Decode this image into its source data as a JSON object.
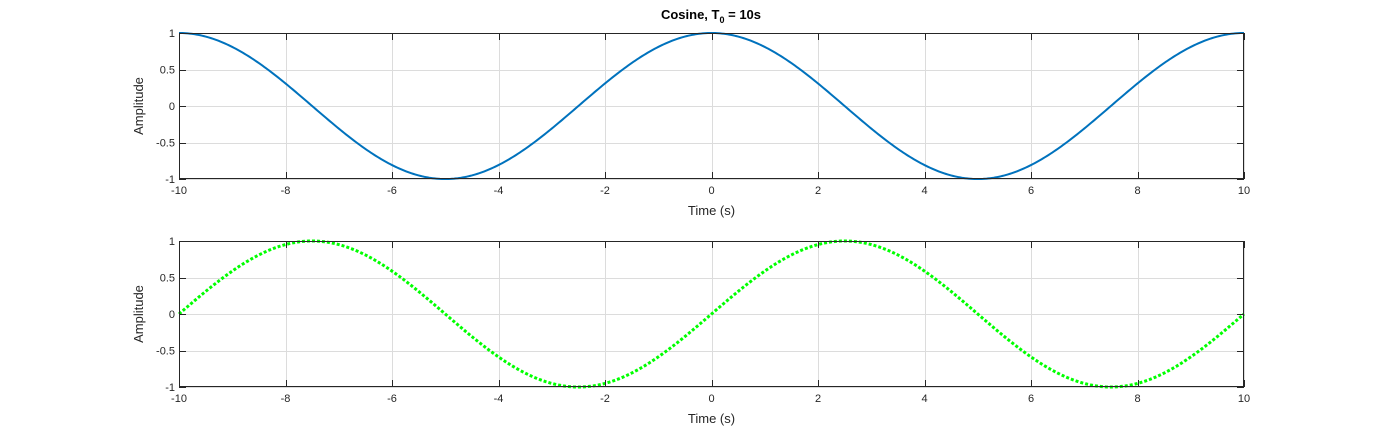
{
  "figure": {
    "title_main": "Cosine, T",
    "title_sub": "0",
    "title_rest": " = 10s"
  },
  "chart_data": [
    {
      "type": "line",
      "function": "cos(2*pi*t/10)",
      "xlabel": "Time (s)",
      "ylabel": "Amplitude",
      "xlim": [
        -10,
        10
      ],
      "ylim": [
        -1,
        1
      ],
      "xticks": [
        -10,
        -8,
        -6,
        -4,
        -2,
        0,
        2,
        4,
        6,
        8,
        10
      ],
      "yticks": [
        -1,
        -0.5,
        0,
        0.5,
        1
      ],
      "x": [
        -10,
        -9.5,
        -9,
        -8.5,
        -8,
        -7.5,
        -7,
        -6.5,
        -6,
        -5.5,
        -5,
        -4.5,
        -4,
        -3.5,
        -3,
        -2.5,
        -2,
        -1.5,
        -1,
        -0.5,
        0,
        0.5,
        1,
        1.5,
        2,
        2.5,
        3,
        3.5,
        4,
        4.5,
        5,
        5.5,
        6,
        6.5,
        7,
        7.5,
        8,
        8.5,
        9,
        9.5,
        10
      ],
      "y": [
        1,
        0.951,
        0.809,
        0.588,
        0.309,
        0,
        -0.309,
        -0.588,
        -0.809,
        -0.951,
        -1,
        -0.951,
        -0.809,
        -0.588,
        -0.309,
        0,
        0.309,
        0.588,
        0.809,
        0.951,
        1,
        0.951,
        0.809,
        0.588,
        0.309,
        0,
        -0.309,
        -0.588,
        -0.809,
        -0.951,
        -1,
        -0.951,
        -0.809,
        -0.588,
        -0.309,
        0,
        0.309,
        0.588,
        0.809,
        0.951,
        1
      ],
      "color": "#0072bd",
      "line_style": "solid",
      "grid": true
    },
    {
      "type": "line",
      "function": "sin(2*pi*t/10)",
      "xlabel": "Time (s)",
      "ylabel": "Amplitude",
      "xlim": [
        -10,
        10
      ],
      "ylim": [
        -1,
        1
      ],
      "xticks": [
        -10,
        -8,
        -6,
        -4,
        -2,
        0,
        2,
        4,
        6,
        8,
        10
      ],
      "yticks": [
        -1,
        -0.5,
        0,
        0.5,
        1
      ],
      "x": [
        -10,
        -9.5,
        -9,
        -8.5,
        -8,
        -7.5,
        -7,
        -6.5,
        -6,
        -5.5,
        -5,
        -4.5,
        -4,
        -3.5,
        -3,
        -2.5,
        -2,
        -1.5,
        -1,
        -0.5,
        0,
        0.5,
        1,
        1.5,
        2,
        2.5,
        3,
        3.5,
        4,
        4.5,
        5,
        5.5,
        6,
        6.5,
        7,
        7.5,
        8,
        8.5,
        9,
        9.5,
        10
      ],
      "y": [
        0,
        0.309,
        0.588,
        0.809,
        0.951,
        1,
        0.951,
        0.809,
        0.588,
        0.309,
        0,
        -0.309,
        -0.588,
        -0.809,
        -0.951,
        -1,
        -0.951,
        -0.809,
        -0.588,
        -0.309,
        0,
        0.309,
        0.588,
        0.809,
        0.951,
        1,
        0.951,
        0.809,
        0.588,
        0.309,
        0,
        -0.309,
        -0.588,
        -0.809,
        -0.951,
        -1,
        -0.951,
        -0.809,
        -0.588,
        -0.309,
        0
      ],
      "color": "#00ff00",
      "line_style": "dotted",
      "grid": true
    }
  ]
}
